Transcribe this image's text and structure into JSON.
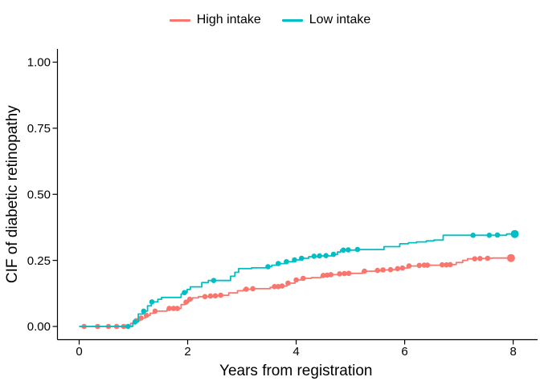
{
  "figure": {
    "background": "#ffffff"
  },
  "colors": {
    "high_intake": "#F8766D",
    "low_intake": "#00BFC4",
    "axis": "#000000",
    "text": "#000000"
  },
  "chart_data": {
    "type": "line",
    "subtype": "step-cumulative-incidence",
    "title": "",
    "xlabel": "Years from registration",
    "ylabel": "CIF of diabetic retinopathy",
    "xlim": [
      -0.4,
      8.45
    ],
    "ylim": [
      -0.05,
      1.05
    ],
    "xticks": [
      0,
      2,
      4,
      6,
      8
    ],
    "xtick_labels": [
      "0",
      "2",
      "4",
      "6",
      "8"
    ],
    "yticks": [
      0.0,
      0.25,
      0.5,
      0.75,
      1.0
    ],
    "ytick_labels": [
      "0.00",
      "0.25",
      "0.50",
      "0.75",
      "1.00"
    ],
    "grid": false,
    "legend_position": "top",
    "series": [
      {
        "name": "High intake",
        "color": "#F8766D",
        "step": true,
        "points": [
          [
            0,
            0
          ],
          [
            0.95,
            0.012
          ],
          [
            1.02,
            0.022
          ],
          [
            1.12,
            0.032
          ],
          [
            1.22,
            0.042
          ],
          [
            1.31,
            0.05
          ],
          [
            1.38,
            0.058
          ],
          [
            1.62,
            0.065
          ],
          [
            1.68,
            0.068
          ],
          [
            1.88,
            0.083
          ],
          [
            1.95,
            0.092
          ],
          [
            2.02,
            0.103
          ],
          [
            2.09,
            0.108
          ],
          [
            2.2,
            0.113
          ],
          [
            2.48,
            0.116
          ],
          [
            2.6,
            0.118
          ],
          [
            2.76,
            0.127
          ],
          [
            2.92,
            0.135
          ],
          [
            3.03,
            0.141
          ],
          [
            3.17,
            0.143
          ],
          [
            3.52,
            0.148
          ],
          [
            3.58,
            0.151
          ],
          [
            3.72,
            0.153
          ],
          [
            3.83,
            0.164
          ],
          [
            3.98,
            0.176
          ],
          [
            4.12,
            0.182
          ],
          [
            4.28,
            0.185
          ],
          [
            4.46,
            0.192
          ],
          [
            4.55,
            0.194
          ],
          [
            4.62,
            0.196
          ],
          [
            4.78,
            0.199
          ],
          [
            4.9,
            0.201
          ],
          [
            5.22,
            0.209
          ],
          [
            5.46,
            0.212
          ],
          [
            5.58,
            0.214
          ],
          [
            5.72,
            0.215
          ],
          [
            5.85,
            0.219
          ],
          [
            5.95,
            0.221
          ],
          [
            6.05,
            0.229
          ],
          [
            6.24,
            0.231
          ],
          [
            6.34,
            0.232
          ],
          [
            6.66,
            0.233
          ],
          [
            6.82,
            0.234
          ],
          [
            6.95,
            0.242
          ],
          [
            7.07,
            0.25
          ],
          [
            7.16,
            0.256
          ],
          [
            7.35,
            0.257
          ],
          [
            7.5,
            0.258
          ],
          [
            7.62,
            0.259
          ],
          [
            7.98,
            0.259
          ]
        ],
        "markers": [
          [
            0.09,
            0
          ],
          [
            0.34,
            0
          ],
          [
            0.54,
            0
          ],
          [
            0.69,
            0
          ],
          [
            0.82,
            0
          ],
          [
            1.05,
            0.022
          ],
          [
            1.14,
            0.032
          ],
          [
            1.24,
            0.042
          ],
          [
            1.4,
            0.058
          ],
          [
            1.66,
            0.068
          ],
          [
            1.74,
            0.068
          ],
          [
            1.81,
            0.068
          ],
          [
            1.97,
            0.092
          ],
          [
            2.04,
            0.103
          ],
          [
            2.32,
            0.113
          ],
          [
            2.42,
            0.115
          ],
          [
            2.51,
            0.116
          ],
          [
            2.61,
            0.118
          ],
          [
            3.08,
            0.141
          ],
          [
            3.2,
            0.143
          ],
          [
            3.6,
            0.151
          ],
          [
            3.67,
            0.151
          ],
          [
            3.74,
            0.153
          ],
          [
            3.85,
            0.164
          ],
          [
            4.0,
            0.176
          ],
          [
            4.13,
            0.182
          ],
          [
            4.5,
            0.193
          ],
          [
            4.57,
            0.194
          ],
          [
            4.64,
            0.196
          ],
          [
            4.8,
            0.199
          ],
          [
            4.89,
            0.2
          ],
          [
            4.97,
            0.201
          ],
          [
            5.26,
            0.209
          ],
          [
            5.5,
            0.212
          ],
          [
            5.6,
            0.214
          ],
          [
            5.74,
            0.215
          ],
          [
            5.87,
            0.219
          ],
          [
            5.96,
            0.221
          ],
          [
            6.08,
            0.229
          ],
          [
            6.27,
            0.231
          ],
          [
            6.36,
            0.232
          ],
          [
            6.42,
            0.232
          ],
          [
            6.69,
            0.233
          ],
          [
            6.77,
            0.233
          ],
          [
            6.84,
            0.234
          ],
          [
            7.29,
            0.256
          ],
          [
            7.39,
            0.257
          ],
          [
            7.53,
            0.258
          ]
        ],
        "final_marker": [
          7.96,
          0.259
        ]
      },
      {
        "name": "Low intake",
        "color": "#00BFC4",
        "step": true,
        "points": [
          [
            0,
            0
          ],
          [
            0.99,
            0.012
          ],
          [
            1.03,
            0.017
          ],
          [
            1.09,
            0.047
          ],
          [
            1.18,
            0.058
          ],
          [
            1.26,
            0.078
          ],
          [
            1.33,
            0.093
          ],
          [
            1.45,
            0.103
          ],
          [
            1.52,
            0.11
          ],
          [
            1.88,
            0.123
          ],
          [
            1.93,
            0.128
          ],
          [
            1.99,
            0.14
          ],
          [
            2.05,
            0.15
          ],
          [
            2.26,
            0.166
          ],
          [
            2.38,
            0.174
          ],
          [
            2.79,
            0.19
          ],
          [
            2.87,
            0.205
          ],
          [
            2.94,
            0.219
          ],
          [
            3.18,
            0.222
          ],
          [
            3.46,
            0.226
          ],
          [
            3.55,
            0.232
          ],
          [
            3.65,
            0.238
          ],
          [
            3.8,
            0.245
          ],
          [
            3.95,
            0.252
          ],
          [
            4.07,
            0.258
          ],
          [
            4.23,
            0.264
          ],
          [
            4.4,
            0.267
          ],
          [
            4.66,
            0.272
          ],
          [
            4.76,
            0.282
          ],
          [
            4.82,
            0.289
          ],
          [
            5.1,
            0.291
          ],
          [
            5.62,
            0.302
          ],
          [
            5.91,
            0.313
          ],
          [
            6.07,
            0.317
          ],
          [
            6.22,
            0.32
          ],
          [
            6.4,
            0.324
          ],
          [
            6.54,
            0.327
          ],
          [
            6.71,
            0.345
          ],
          [
            7.88,
            0.35
          ],
          [
            8.05,
            0.35
          ]
        ],
        "markers": [
          [
            0.9,
            0
          ],
          [
            1.03,
            0.017
          ],
          [
            1.19,
            0.058
          ],
          [
            1.34,
            0.093
          ],
          [
            1.94,
            0.128
          ],
          [
            2.48,
            0.174
          ],
          [
            3.48,
            0.226
          ],
          [
            3.67,
            0.238
          ],
          [
            3.82,
            0.245
          ],
          [
            3.97,
            0.252
          ],
          [
            4.1,
            0.258
          ],
          [
            4.33,
            0.266
          ],
          [
            4.43,
            0.267
          ],
          [
            4.55,
            0.268
          ],
          [
            4.69,
            0.273
          ],
          [
            4.87,
            0.289
          ],
          [
            4.96,
            0.29
          ],
          [
            5.13,
            0.291
          ],
          [
            7.26,
            0.345
          ],
          [
            7.56,
            0.345
          ],
          [
            7.71,
            0.346
          ]
        ],
        "final_marker": [
          8.03,
          0.35
        ]
      }
    ]
  }
}
